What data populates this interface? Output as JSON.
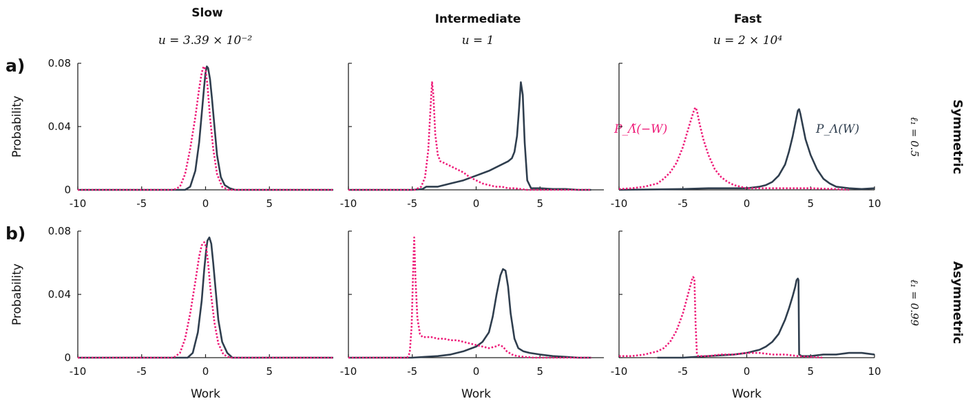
{
  "columns": [
    {
      "title": "Slow",
      "speed": "u = 3.39 × 10⁻²"
    },
    {
      "title": "Intermediate",
      "speed": "u = 1"
    },
    {
      "title": "Fast",
      "speed": "u = 2 × 10⁴"
    }
  ],
  "rows": [
    {
      "label": "a)",
      "side_title": "Symmetric",
      "side_param": "ℓ₁ = 0.5"
    },
    {
      "label": "b)",
      "side_title": "Asymmetric",
      "side_param": "ℓ₁ = 0.99"
    }
  ],
  "colors": {
    "forward": "#2f3e4e",
    "reverse": "#ee1a78"
  },
  "annotations": {
    "reverse_label": "P_Λ̃(−W)",
    "forward_label": "P_Λ(W)"
  },
  "chart_data": [
    {
      "panel": "a-slow",
      "type": "line",
      "xlabel": "",
      "ylabel": "Probability",
      "xlim": [
        -10,
        10
      ],
      "ylim": [
        0,
        0.08
      ],
      "xticks": [
        "-10",
        "-5",
        "0",
        "5"
      ],
      "yticks": [
        "0",
        "0.04",
        "0.08"
      ],
      "series": [
        {
          "style": "solid",
          "x": [
            -10,
            -1.6,
            -1.2,
            -0.8,
            -0.5,
            -0.3,
            -0.1,
            0.0,
            0.1,
            0.2,
            0.35,
            0.5,
            0.7,
            0.9,
            1.2,
            1.5,
            1.9,
            2.3,
            10
          ],
          "y": [
            0,
            0,
            0.002,
            0.012,
            0.03,
            0.048,
            0.066,
            0.074,
            0.078,
            0.077,
            0.07,
            0.058,
            0.04,
            0.022,
            0.008,
            0.003,
            0.001,
            0,
            0
          ]
        },
        {
          "style": "dashed",
          "x": [
            -10,
            -2.5,
            -2.0,
            -1.6,
            -1.2,
            -0.8,
            -0.5,
            -0.3,
            -0.15,
            0.0,
            0.15,
            0.35,
            0.6,
            0.9,
            1.3,
            1.8,
            10
          ],
          "y": [
            0,
            0,
            0.002,
            0.01,
            0.026,
            0.046,
            0.064,
            0.074,
            0.078,
            0.076,
            0.066,
            0.046,
            0.026,
            0.01,
            0.002,
            0,
            0
          ]
        }
      ]
    },
    {
      "panel": "a-intermediate",
      "type": "line",
      "xlabel": "",
      "ylabel": "",
      "xlim": [
        -10,
        10
      ],
      "ylim": [
        0,
        0.08
      ],
      "xticks": [
        "-10",
        "-5",
        "0",
        "5"
      ],
      "yticks": [],
      "series": [
        {
          "style": "solid",
          "x": [
            -10,
            -5,
            -4.2,
            -3.9,
            -3.5,
            -3,
            -2,
            -1,
            0,
            1,
            2,
            2.5,
            2.8,
            3.0,
            3.2,
            3.35,
            3.5,
            3.65,
            3.8,
            4.0,
            4.3,
            5,
            6,
            7,
            8,
            9
          ],
          "y": [
            0,
            0,
            0.0005,
            0.002,
            0.002,
            0.002,
            0.004,
            0.006,
            0.009,
            0.012,
            0.016,
            0.018,
            0.02,
            0.024,
            0.034,
            0.05,
            0.068,
            0.06,
            0.03,
            0.006,
            0.001,
            0.001,
            0.0005,
            0.0005,
            0,
            0
          ]
        },
        {
          "style": "dashed",
          "x": [
            -10,
            -4.8,
            -4.3,
            -4.0,
            -3.75,
            -3.55,
            -3.45,
            -3.35,
            -3.2,
            -3.0,
            -2.8,
            -2.5,
            -2,
            -1.5,
            -1,
            -0.5,
            0,
            0.5,
            1,
            1.5,
            2,
            2.5,
            3,
            3.5,
            4,
            9
          ],
          "y": [
            0,
            0,
            0.002,
            0.008,
            0.025,
            0.055,
            0.068,
            0.06,
            0.035,
            0.022,
            0.018,
            0.017,
            0.015,
            0.013,
            0.011,
            0.008,
            0.006,
            0.004,
            0.003,
            0.002,
            0.002,
            0.001,
            0.001,
            0.0005,
            0,
            0
          ]
        }
      ]
    },
    {
      "panel": "a-fast",
      "type": "line",
      "xlabel": "",
      "ylabel": "",
      "xlim": [
        -10,
        10
      ],
      "ylim": [
        0,
        0.08
      ],
      "xticks": [
        "-10",
        "-5",
        "0",
        "5",
        "10"
      ],
      "yticks": [],
      "series": [
        {
          "style": "solid",
          "x": [
            -10,
            -5,
            -3,
            -1,
            0,
            1,
            1.5,
            2,
            2.5,
            3,
            3.3,
            3.6,
            3.8,
            4.0,
            4.1,
            4.2,
            4.4,
            4.6,
            5,
            5.5,
            6,
            6.5,
            7,
            8,
            9,
            10
          ],
          "y": [
            0,
            0.0005,
            0.001,
            0.001,
            0.001,
            0.002,
            0.003,
            0.005,
            0.009,
            0.016,
            0.024,
            0.034,
            0.042,
            0.05,
            0.051,
            0.048,
            0.04,
            0.032,
            0.022,
            0.013,
            0.007,
            0.004,
            0.002,
            0.001,
            0.0005,
            0.001
          ]
        },
        {
          "style": "dashed",
          "x": [
            -10,
            -9,
            -8,
            -7,
            -6.5,
            -6,
            -5.5,
            -5,
            -4.6,
            -4.3,
            -4.1,
            -4.0,
            -3.9,
            -3.7,
            -3.4,
            -3,
            -2.5,
            -2,
            -1.5,
            -1,
            -0.5,
            0,
            1,
            3,
            5,
            7,
            8
          ],
          "y": [
            0.0005,
            0.001,
            0.002,
            0.004,
            0.007,
            0.011,
            0.017,
            0.027,
            0.038,
            0.046,
            0.051,
            0.052,
            0.05,
            0.042,
            0.032,
            0.022,
            0.013,
            0.008,
            0.005,
            0.003,
            0.002,
            0.001,
            0.001,
            0.001,
            0.001,
            0.0005,
            0
          ]
        }
      ]
    },
    {
      "panel": "b-slow",
      "type": "line",
      "xlabel": "Work",
      "ylabel": "Probability",
      "xlim": [
        -10,
        10
      ],
      "ylim": [
        0,
        0.08
      ],
      "xticks": [
        "-10",
        "-5",
        "0",
        "5"
      ],
      "yticks": [
        "0",
        "0.04",
        "0.08"
      ],
      "series": [
        {
          "style": "solid",
          "x": [
            -10,
            -1.4,
            -1.0,
            -0.6,
            -0.3,
            -0.1,
            0.05,
            0.15,
            0.3,
            0.45,
            0.6,
            0.8,
            1.0,
            1.3,
            1.7,
            2.1,
            10
          ],
          "y": [
            0,
            0,
            0.003,
            0.016,
            0.036,
            0.056,
            0.068,
            0.074,
            0.076,
            0.072,
            0.06,
            0.042,
            0.024,
            0.01,
            0.003,
            0,
            0
          ]
        },
        {
          "style": "dashed",
          "x": [
            -10,
            -2.5,
            -2.0,
            -1.6,
            -1.2,
            -0.8,
            -0.5,
            -0.3,
            -0.1,
            0.05,
            0.2,
            0.4,
            0.7,
            1.0,
            1.4,
            1.9,
            10
          ],
          "y": [
            0,
            0,
            0.003,
            0.012,
            0.028,
            0.048,
            0.064,
            0.071,
            0.073,
            0.07,
            0.06,
            0.042,
            0.022,
            0.009,
            0.002,
            0,
            0
          ]
        }
      ]
    },
    {
      "panel": "b-intermediate",
      "type": "line",
      "xlabel": "Work",
      "ylabel": "",
      "xlim": [
        -10,
        10
      ],
      "ylim": [
        0,
        0.08
      ],
      "xticks": [
        "-10",
        "-5",
        "0",
        "5"
      ],
      "yticks": [],
      "series": [
        {
          "style": "solid",
          "x": [
            -10,
            -5,
            -4,
            -3,
            -2,
            -1,
            0,
            0.5,
            1,
            1.3,
            1.6,
            1.9,
            2.1,
            2.3,
            2.5,
            2.7,
            3.0,
            3.3,
            3.7,
            4.2,
            5,
            6,
            7,
            8,
            9
          ],
          "y": [
            0,
            0,
            0.0005,
            0.001,
            0.002,
            0.004,
            0.007,
            0.01,
            0.016,
            0.026,
            0.04,
            0.052,
            0.056,
            0.055,
            0.045,
            0.028,
            0.012,
            0.006,
            0.004,
            0.003,
            0.002,
            0.001,
            0.0005,
            0,
            0
          ]
        },
        {
          "style": "dashed",
          "x": [
            -10,
            -5.4,
            -5.2,
            -5.05,
            -4.95,
            -4.85,
            -4.75,
            -4.6,
            -4.4,
            -4.2,
            -4,
            -3.5,
            -3,
            -2.5,
            -2,
            -1.5,
            -1,
            -0.5,
            0,
            0.5,
            1,
            1.5,
            1.8,
            2.1,
            2.4,
            2.8,
            3.2,
            3.8,
            4.5,
            5.5,
            9
          ],
          "y": [
            0,
            0,
            0.003,
            0.02,
            0.05,
            0.076,
            0.05,
            0.025,
            0.015,
            0.013,
            0.013,
            0.013,
            0.012,
            0.012,
            0.011,
            0.011,
            0.01,
            0.009,
            0.008,
            0.007,
            0.006,
            0.007,
            0.008,
            0.007,
            0.004,
            0.002,
            0.001,
            0.0005,
            0,
            0,
            0
          ]
        }
      ]
    },
    {
      "panel": "b-fast",
      "type": "line",
      "xlabel": "Work",
      "ylabel": "",
      "xlim": [
        -10,
        10
      ],
      "ylim": [
        0,
        0.08
      ],
      "xticks": [
        "-10",
        "-5",
        "0",
        "5",
        "10"
      ],
      "yticks": [],
      "series": [
        {
          "style": "solid",
          "x": [
            -7,
            -5,
            -3,
            -1,
            0,
            0.5,
            1,
            1.5,
            2,
            2.5,
            3,
            3.3,
            3.6,
            3.8,
            3.9,
            4.0,
            4.05,
            4.1,
            4.3,
            5,
            6,
            7,
            8,
            9,
            10
          ],
          "y": [
            0,
            0,
            0.001,
            0.002,
            0.003,
            0.004,
            0.005,
            0.007,
            0.01,
            0.015,
            0.024,
            0.031,
            0.039,
            0.045,
            0.049,
            0.05,
            0.049,
            0.002,
            0.001,
            0.001,
            0.002,
            0.002,
            0.003,
            0.003,
            0.002
          ]
        },
        {
          "style": "dashed",
          "x": [
            -10,
            -9,
            -8,
            -7,
            -6.5,
            -6,
            -5.5,
            -5,
            -4.6,
            -4.3,
            -4.2,
            -4.1,
            -4.0,
            -3.9,
            -3.8,
            -3.5,
            -3,
            -2,
            -1,
            0,
            1,
            2,
            3,
            4,
            5,
            6
          ],
          "y": [
            0.001,
            0.001,
            0.002,
            0.004,
            0.006,
            0.01,
            0.017,
            0.028,
            0.04,
            0.049,
            0.051,
            0.05,
            0.02,
            0.002,
            0.001,
            0.001,
            0.001,
            0.002,
            0.002,
            0.003,
            0.003,
            0.002,
            0.002,
            0.001,
            0.0005,
            0
          ]
        }
      ]
    }
  ]
}
